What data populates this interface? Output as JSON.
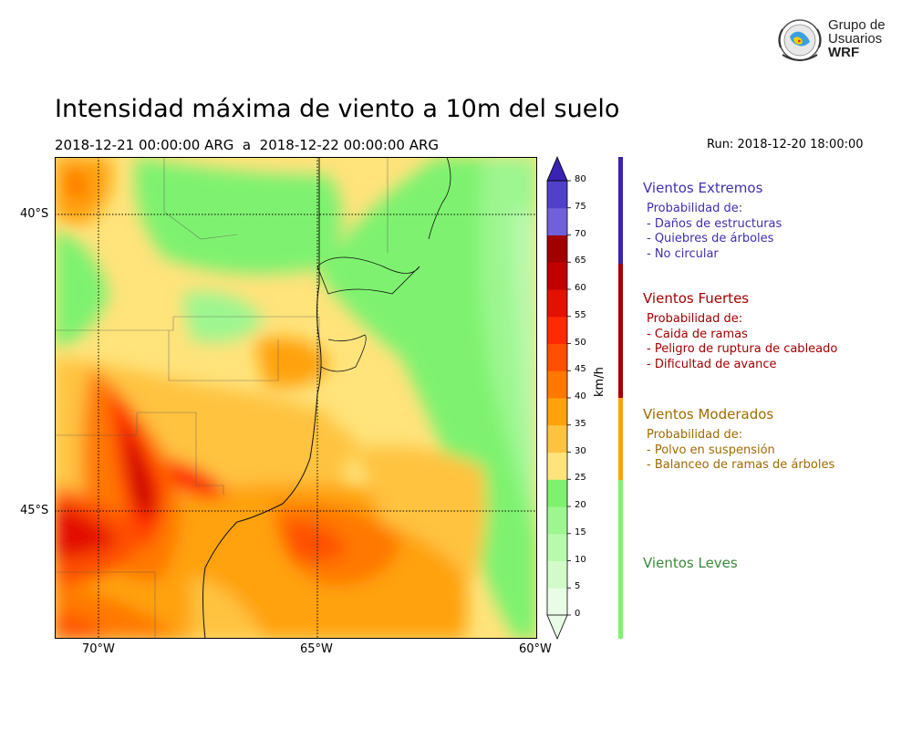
{
  "logo": {
    "line1": "Grupo de",
    "line2": "Usuarios",
    "line3": "WRF"
  },
  "header": {
    "title": "Intensidad máxima de viento a 10m del suelo",
    "subtitle": "2018-12-21 00:00:00 ARG  a  2018-12-22 00:00:00 ARG",
    "run": "Run: 2018-12-20 18:00:00"
  },
  "map": {
    "lat_labels": [
      "40°S",
      "45°S"
    ],
    "lon_labels": [
      "70°W",
      "65°W",
      "60°W"
    ]
  },
  "colorbar": {
    "unit": "km/h",
    "ticks": [
      "0",
      "5",
      "10",
      "15",
      "20",
      "25",
      "30",
      "35",
      "40",
      "45",
      "50",
      "55",
      "60",
      "65",
      "70",
      "75",
      "80"
    ],
    "colors": [
      "#e9fde6",
      "#d2fbc9",
      "#b8f9ad",
      "#9df690",
      "#7ef26f",
      "#ffe37b",
      "#ffc340",
      "#ffa20e",
      "#ff7800",
      "#ff4f00",
      "#ff2a00",
      "#e21100",
      "#c00000",
      "#a20000",
      "#7060db",
      "#5140c9",
      "#3923b3"
    ]
  },
  "categories": [
    {
      "title": "Vientos Extremos",
      "color": "#3f2fb0",
      "lines": [
        "Probabilidad de:",
        "- Daños de estructuras",
        "- Quiebres de árboles",
        "- No circular"
      ]
    },
    {
      "title": "Vientos Fuertes",
      "color": "#a30000",
      "lines": [
        "Probabilidad de:",
        "- Caida de ramas",
        "- Peligro de ruptura de cableado",
        "- Dificultad de avance"
      ]
    },
    {
      "title": "Vientos Moderados",
      "color": "#a06a00",
      "lines": [
        "Probabilidad de:",
        "- Polvo en suspensión",
        "- Balanceo de ramas de árboles"
      ]
    },
    {
      "title": "Vientos Leves",
      "color": "#3a8a3a",
      "lines": []
    }
  ]
}
